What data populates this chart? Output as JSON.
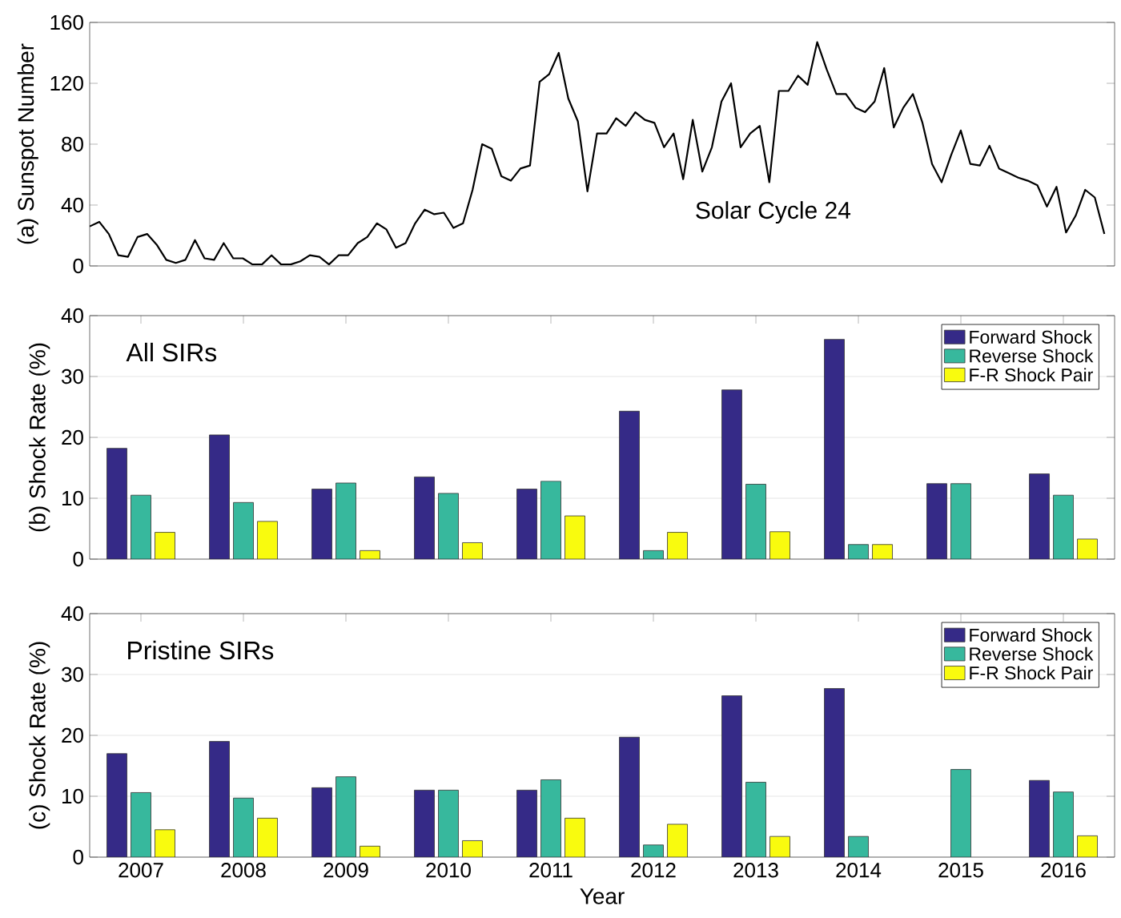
{
  "chart_data": [
    {
      "type": "line",
      "ylabel": "(a) Sunspot Number",
      "color": "#000000",
      "annotations": [
        "Solar Cycle 24"
      ],
      "categories": [
        null,
        null,
        null,
        null,
        null,
        null,
        null,
        null,
        null,
        null,
        null,
        null,
        null,
        null,
        null,
        null,
        null,
        null,
        null,
        null,
        null,
        null,
        null,
        null,
        null,
        null,
        null,
        null,
        null,
        null,
        null,
        null,
        null,
        null,
        null,
        null,
        null,
        null,
        null,
        null,
        null,
        null,
        null,
        null,
        null,
        null,
        null,
        null,
        null,
        null,
        null,
        null,
        null,
        null,
        null,
        null,
        null,
        null,
        null,
        null,
        null,
        null,
        null,
        null,
        null,
        null,
        null,
        null,
        null,
        null,
        null,
        null,
        null,
        null,
        null,
        null,
        null,
        null,
        null,
        null,
        null,
        null,
        null,
        null,
        null,
        null,
        null,
        null,
        null,
        null,
        null,
        null,
        null,
        null,
        null,
        null,
        null,
        null,
        null,
        null,
        null,
        null,
        null,
        null,
        null,
        null,
        null
      ],
      "values": [
        26,
        29,
        21,
        7,
        6,
        19,
        21,
        14,
        4,
        2,
        4,
        17,
        5,
        4,
        15,
        5,
        5,
        1,
        1,
        7,
        1,
        1,
        3,
        7,
        6,
        1,
        7,
        7,
        15,
        19,
        28,
        24,
        12,
        15,
        28,
        37,
        34,
        35,
        25,
        28,
        50,
        80,
        77,
        59,
        56,
        64,
        66,
        121,
        126,
        140,
        110,
        95,
        49,
        87,
        87,
        97,
        92,
        101,
        96,
        94,
        78,
        87,
        57,
        96,
        62,
        78,
        108,
        120,
        78,
        87,
        92,
        55,
        115,
        115,
        125,
        119,
        147,
        129,
        113,
        113,
        104,
        101,
        108,
        130,
        91,
        104,
        113,
        94,
        67,
        55,
        73,
        89,
        67,
        66,
        79,
        64,
        61,
        58,
        56,
        53,
        39,
        52,
        22,
        33,
        50,
        45,
        21
      ],
      "ylim": [
        0,
        160
      ],
      "yticks": [
        0,
        40,
        80,
        120,
        160
      ],
      "tick_labels": "y"
    },
    {
      "type": "bar",
      "ylabel": "(b) Shock Rate (%)",
      "annotations": [
        "All SIRs"
      ],
      "categories": [
        "2007",
        "2008",
        "2009",
        "2010",
        "2011",
        "2012",
        "2013",
        "2014",
        "2015",
        "2016"
      ],
      "series": [
        {
          "name": "Forward Shock",
          "color": "#352a87",
          "values": [
            18.2,
            20.4,
            11.5,
            13.5,
            11.5,
            24.3,
            27.8,
            36.1,
            12.4,
            14
          ]
        },
        {
          "name": "Reverse Shock",
          "color": "#37b89d",
          "values": [
            10.5,
            9.3,
            12.5,
            10.8,
            12.8,
            1.4,
            12.3,
            2.4,
            12.4,
            10.5
          ]
        },
        {
          "name": "F-R Shock Pair",
          "color": "#f9fb0e",
          "values": [
            4.4,
            6.2,
            1.4,
            2.7,
            7.1,
            4.4,
            4.5,
            2.4,
            null,
            3.3
          ]
        }
      ],
      "ylim": [
        0,
        40
      ],
      "yticks": [
        0,
        10,
        20,
        30,
        40
      ],
      "grid": "y",
      "legend": "top right",
      "tick_labels": "y"
    },
    {
      "type": "bar",
      "ylabel": "(c) Shock Rate (%)",
      "xlabel": "Year",
      "annotations": [
        "Pristine SIRs"
      ],
      "categories": [
        "2007",
        "2008",
        "2009",
        "2010",
        "2011",
        "2012",
        "2013",
        "2014",
        "2015",
        "2016"
      ],
      "series": [
        {
          "name": "Forward Shock",
          "color": "#352a87",
          "values": [
            17,
            19,
            11.4,
            11,
            11,
            19.7,
            26.5,
            27.7,
            null,
            12.6
          ]
        },
        {
          "name": "Reverse Shock",
          "color": "#37b89d",
          "values": [
            10.6,
            9.7,
            13.2,
            11,
            12.7,
            2,
            12.3,
            3.4,
            14.4,
            10.7
          ]
        },
        {
          "name": "F-R Shock Pair",
          "color": "#f9fb0e",
          "values": [
            4.5,
            6.4,
            1.8,
            2.7,
            6.4,
            5.4,
            3.4,
            null,
            null,
            3.5
          ]
        }
      ],
      "ylim": [
        0,
        40
      ],
      "yticks": [
        0,
        10,
        20,
        30,
        40
      ],
      "grid": "y",
      "legend": "top right"
    }
  ]
}
